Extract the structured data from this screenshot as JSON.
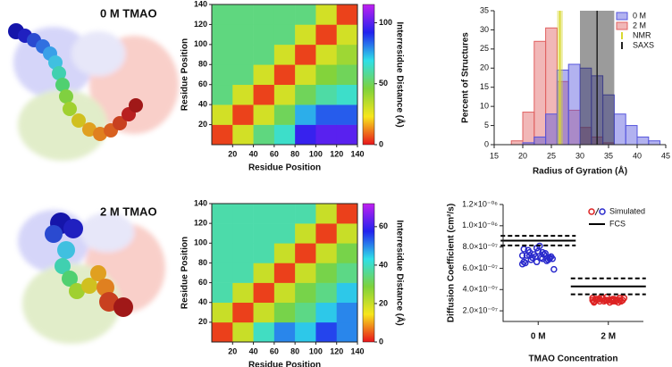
{
  "panels": [
    "0 M TMAO",
    "2 M TMAO"
  ],
  "chart_data": [
    {
      "type": "heatmap",
      "xlabel": "Residue Position",
      "ylabel": "Residue Position",
      "zlabel": "Interresidue Distance (Å)",
      "xlim": [
        0,
        140
      ],
      "ylim": [
        0,
        140
      ],
      "xticks": [
        20,
        40,
        60,
        80,
        100,
        120,
        140
      ],
      "yticks": [
        20,
        40,
        60,
        80,
        100,
        120,
        140
      ],
      "bins": [
        0,
        20,
        40,
        60,
        80,
        100,
        120,
        140
      ],
      "z": [
        [
          5,
          30,
          55,
          65,
          95,
          100,
          100
        ],
        [
          30,
          5,
          30,
          50,
          75,
          85,
          85
        ],
        [
          55,
          30,
          5,
          30,
          50,
          60,
          65
        ],
        [
          55,
          55,
          30,
          5,
          30,
          45,
          50
        ],
        [
          55,
          55,
          55,
          30,
          5,
          30,
          40
        ],
        [
          55,
          55,
          55,
          55,
          30,
          5,
          30
        ],
        [
          55,
          55,
          55,
          55,
          55,
          30,
          5
        ]
      ],
      "zlim": [
        0,
        115
      ],
      "zticks": [
        0,
        50,
        100
      ],
      "colorscale": [
        "#e8141b",
        "#f7e61c",
        "#7ed23c",
        "#2fe0e8",
        "#2222ee",
        "#c020f0"
      ]
    },
    {
      "type": "heatmap",
      "xlabel": "Residue Position",
      "ylabel": "Residue Position",
      "zlabel": "Interresidue Distance (Å)",
      "xlim": [
        0,
        140
      ],
      "ylim": [
        0,
        140
      ],
      "xticks": [
        20,
        40,
        60,
        80,
        100,
        120,
        140
      ],
      "yticks": [
        20,
        40,
        60,
        80,
        100,
        120,
        140
      ],
      "bins": [
        0,
        20,
        40,
        60,
        80,
        100,
        120,
        140
      ],
      "z": [
        [
          3,
          20,
          40,
          50,
          45,
          55,
          50
        ],
        [
          20,
          3,
          20,
          30,
          35,
          45,
          50
        ],
        [
          38,
          20,
          3,
          20,
          30,
          35,
          45
        ],
        [
          38,
          38,
          20,
          3,
          20,
          30,
          35
        ],
        [
          38,
          38,
          38,
          20,
          3,
          20,
          30
        ],
        [
          38,
          38,
          38,
          38,
          20,
          3,
          20
        ],
        [
          38,
          38,
          38,
          38,
          38,
          20,
          3
        ]
      ],
      "zlim": [
        0,
        72
      ],
      "zticks": [
        0,
        20,
        40,
        60
      ],
      "colorscale": [
        "#e8141b",
        "#f7e61c",
        "#7ed23c",
        "#2fe0e8",
        "#2222ee",
        "#c020f0"
      ]
    },
    {
      "type": "histogram",
      "xlabel": "Radius of Gyration (Å)",
      "ylabel": "Percent of Structures",
      "xlim": [
        15,
        45
      ],
      "xticks": [
        15,
        20,
        25,
        30,
        35,
        40,
        45
      ],
      "ylim": [
        0,
        35
      ],
      "yticks": [
        0,
        5,
        10,
        15,
        20,
        25,
        30,
        35
      ],
      "bins": [
        18,
        20,
        22,
        24,
        26,
        28,
        30,
        32,
        34,
        36,
        38,
        40,
        42,
        44
      ],
      "series": [
        {
          "name": "2 M",
          "color": "#e06060",
          "values": [
            1,
            8.5,
            27,
            30.5,
            16.5,
            9,
            4.5,
            2,
            0.5,
            0,
            0,
            0,
            0
          ]
        },
        {
          "name": "0 M",
          "color": "#5555dd",
          "values": [
            0,
            0.5,
            2,
            8,
            19.5,
            21,
            20,
            18,
            13,
            8,
            5,
            2,
            1
          ]
        }
      ],
      "bands": [
        {
          "name": "NMR",
          "color": "#d8d830",
          "center": 26.5,
          "low": 26,
          "high": 27
        },
        {
          "name": "SAXS",
          "color": "#222222",
          "center": 33,
          "low": 30,
          "high": 36
        }
      ],
      "legend": "upper right"
    },
    {
      "type": "strip",
      "xlabel": "TMAO  Concentration",
      "ylabel": "Diffusion Coefficient (cm²/s)",
      "categories": [
        "0 M",
        "2 M"
      ],
      "ylim": [
        1e-07,
        1.2e-06
      ],
      "yticks": [
        {
          "value": 2e-07,
          "label": "2.0×10⁻⁰⁷"
        },
        {
          "value": 4e-07,
          "label": "4.0×10⁻⁰⁷"
        },
        {
          "value": 6e-07,
          "label": "6.0×10⁻⁰⁷"
        },
        {
          "value": 8e-07,
          "label": "8.0×10⁻⁰⁷"
        },
        {
          "value": 1e-06,
          "label": "1.0×10⁻⁰⁶"
        },
        {
          "value": 1.2e-06,
          "label": "1.2×10⁻⁰⁶"
        }
      ],
      "series": [
        {
          "name": "Simulated",
          "colors": [
            "#2a2acc",
            "#dd2222"
          ],
          "values": [
            [
              7.2e-07,
              6.9e-07,
              7.5e-07,
              7e-07,
              6.6e-07,
              7.8e-07,
              7.3e-07,
              6.8e-07,
              7.1e-07,
              7.6e-07,
              6.5e-07,
              7.4e-07,
              7e-07,
              6.9e-07,
              8.1e-07,
              7.2e-07,
              6.7e-07,
              7.3e-07,
              5.9e-07,
              7e-07,
              7.7e-07,
              6.8e-07,
              7.1e-07,
              6.4e-07,
              7.5e-07,
              7.2e-07,
              6.9e-07,
              7.9e-07,
              6.6e-07,
              7.3e-07
            ],
            [
              3e-07,
              3.1e-07,
              2.9e-07,
              3.2e-07,
              3e-07,
              2.8e-07,
              3.1e-07,
              3.3e-07,
              2.9e-07,
              3e-07,
              3.1e-07,
              2.9e-07,
              3.2e-07,
              3e-07,
              2.8e-07,
              3.1e-07,
              3e-07,
              2.9e-07,
              3.2e-07,
              3e-07,
              3.1e-07,
              2.8e-07,
              3e-07,
              3.2e-07,
              2.9e-07,
              3.1e-07,
              3e-07,
              3.3e-07,
              2.9e-07,
              3e-07
            ]
          ]
        },
        {
          "name": "FCS",
          "color": "#000000",
          "values": [
            8.6e-07,
            4.3e-07
          ],
          "errors": [
            4.5e-08,
            7.5e-08
          ]
        }
      ],
      "legend": "upper right"
    }
  ]
}
